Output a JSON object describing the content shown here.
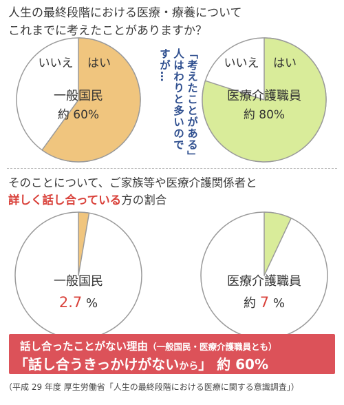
{
  "question": {
    "line1": "人生の最終段階における医療・療養について",
    "line2": "これまでに考えたことがありますか？"
  },
  "annotation": {
    "col1": "「考えたことがある」",
    "col2": "人はわりと多いので",
    "col3": "すが…"
  },
  "section2": {
    "line1": "そのことについて、ご家族等や医療介護関係者と",
    "line2_highlight": "詳しく話し合っている",
    "line2_rest": "方の割合"
  },
  "colors": {
    "public_fill": "#f0c57e",
    "professional_fill": "#d9ec9a",
    "pie_empty": "#ffffff",
    "outline": "#9a9a9a",
    "highlight_red": "#d9413a",
    "banner_bg": "#dc5259",
    "annotation_text": "#2f4f8f"
  },
  "chart_data": [
    {
      "type": "pie",
      "name": "一般国民",
      "value_label": "約 60%",
      "slices": [
        {
          "label": "はい",
          "value": 60,
          "color": "#f0c57e"
        },
        {
          "label": "いいえ",
          "value": 40,
          "color": "#ffffff"
        }
      ]
    },
    {
      "type": "pie",
      "name": "医療介護職員",
      "value_label": "約 80%",
      "slices": [
        {
          "label": "はい",
          "value": 80,
          "color": "#d9ec9a"
        },
        {
          "label": "いいえ",
          "value": 20,
          "color": "#ffffff"
        }
      ]
    },
    {
      "type": "pie",
      "name": "一般国民",
      "value_number": "2.7",
      "value_unit": "%",
      "slices": [
        {
          "label": "",
          "value": 2.7,
          "color": "#f0c57e"
        },
        {
          "label": "",
          "value": 97.3,
          "color": "#ffffff"
        }
      ]
    },
    {
      "type": "pie",
      "name": "医療介護職員",
      "value_prefix": "約",
      "value_number": "7",
      "value_unit": "%",
      "slices": [
        {
          "label": "",
          "value": 7,
          "color": "#d9ec9a"
        },
        {
          "label": "",
          "value": 93,
          "color": "#ffffff"
        }
      ]
    }
  ],
  "banner": {
    "line1": "話し合ったことがない理由",
    "line1_note": "（一般国民・医療介護職員とも）",
    "line2_main": "「話し合うきっかけがない",
    "line2_small": "から",
    "line2_close": "」",
    "line2_pct": "約 60%"
  },
  "source": "（平成 29 年度 厚生労働省「人生の最終段階における医療に関する意識調査」）"
}
